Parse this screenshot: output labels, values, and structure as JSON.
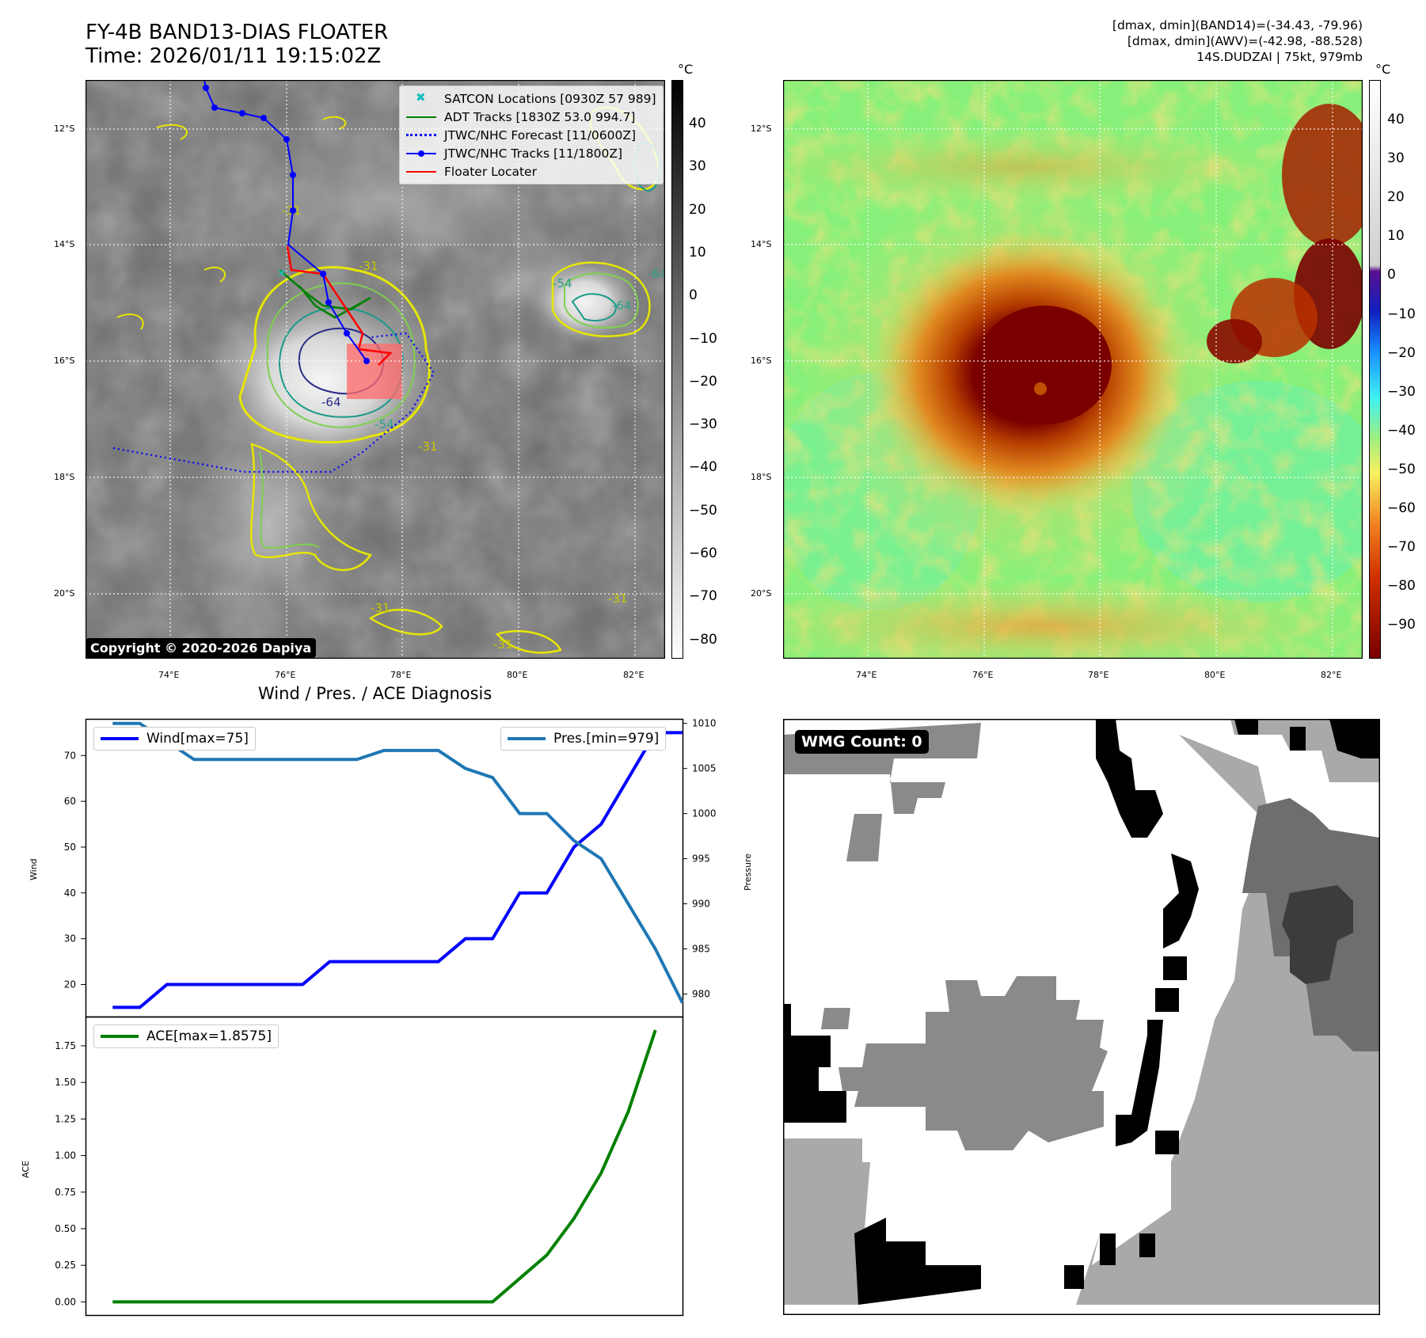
{
  "header": {
    "title_line1": "FY-4B BAND13-DIAS FLOATER",
    "title_line2": "Time: 2026/01/11 19:15:02Z",
    "info_line1": "[dmax, dmin](BAND14)=(-34.43, -79.96)",
    "info_line2": "[dmax, dmin](AWV)=(-42.98, -88.528)",
    "info_line3": "14S.DUDZAI | 75kt, 979mb"
  },
  "map": {
    "lat_labels": [
      "12°S",
      "14°S",
      "16°S",
      "18°S",
      "20°S"
    ],
    "lon_labels": [
      "74°E",
      "76°E",
      "78°E",
      "80°E",
      "82°E"
    ],
    "contour_labels": [
      "-31",
      "-31",
      "-54",
      "-64",
      "-54",
      "-64",
      "-31",
      "-31",
      "-64",
      "-31",
      "-31"
    ],
    "copyright": "Copyright © 2020-2026 Dapiya",
    "legend": [
      {
        "label": "SATCON Locations [0930Z 57 989]",
        "color": "#17bfbf",
        "style": "marker-x"
      },
      {
        "label": "ADT Tracks [1830Z 53.0 994.7]",
        "color": "#008000",
        "style": "solid"
      },
      {
        "label": "JTWC/NHC Forecast [11/0600Z]",
        "color": "#0000ff",
        "style": "dotted"
      },
      {
        "label": "JTWC/NHC Tracks [11/1800Z]",
        "color": "#0000ff",
        "style": "solid-dot"
      },
      {
        "label": "Floater Locater",
        "color": "#ff0000",
        "style": "solid"
      }
    ]
  },
  "colorbar_left": {
    "unit": "°C",
    "ticks": [
      "40",
      "30",
      "20",
      "10",
      "0",
      "−10",
      "−20",
      "−30",
      "−40",
      "−50",
      "−60",
      "−70",
      "−80"
    ]
  },
  "colorbar_right": {
    "unit": "°C",
    "ticks": [
      "40",
      "30",
      "20",
      "10",
      "0",
      "−10",
      "−20",
      "−30",
      "−40",
      "−50",
      "−60",
      "−70",
      "−80",
      "−90"
    ]
  },
  "diagnosis": {
    "title": "Wind / Pres. / ACE Diagnosis",
    "wind_ylabel": "Wind",
    "pres_ylabel": "Pressure",
    "ace_ylabel": "ACE",
    "wind_legend": "Wind[max=75]",
    "pres_legend": "Pres.[min=979]",
    "ace_legend": "ACE[max=1.8575]"
  },
  "wmg": {
    "label": "WMG Count: 0"
  },
  "colors": {
    "wind": "#0000ff",
    "pressure": "#1f77b4",
    "ace": "#008000",
    "track": "#0000ff",
    "adt": "#008000",
    "floater": "#ff0000"
  },
  "chart_data": [
    {
      "type": "line",
      "title": "Wind / Pres. / ACE Diagnosis",
      "x": [
        0,
        1,
        2,
        3,
        4,
        5,
        6,
        7,
        8,
        9,
        10,
        11,
        12,
        13,
        14,
        15,
        16,
        17,
        18,
        19,
        20,
        21
      ],
      "series": [
        {
          "name": "Wind[max=75]",
          "axis": "left",
          "values": [
            15,
            15,
            20,
            20,
            20,
            20,
            20,
            20,
            25,
            25,
            25,
            25,
            25,
            30,
            30,
            40,
            40,
            50,
            55,
            65,
            75,
            75
          ]
        },
        {
          "name": "Pres.[min=979]",
          "axis": "right",
          "values": [
            1010,
            1010,
            1008,
            1006,
            1006,
            1006,
            1006,
            1006,
            1006,
            1006,
            1007,
            1007,
            1007,
            1005,
            1004,
            1000,
            1000,
            997,
            995,
            990,
            985,
            979
          ]
        }
      ],
      "xlim": [
        -1,
        21
      ],
      "ylabel": "Wind",
      "ylim": [
        13,
        78
      ],
      "yticks": [
        20,
        30,
        40,
        50,
        60,
        70
      ],
      "y2label": "Pressure",
      "y2lim": [
        977.5,
        1010.5
      ],
      "y2ticks": [
        980,
        985,
        990,
        995,
        1000,
        1005,
        1010
      ],
      "legend": [
        "upper-left",
        "upper-right"
      ]
    },
    {
      "type": "line",
      "x": [
        0,
        1,
        2,
        3,
        4,
        5,
        6,
        7,
        8,
        9,
        10,
        11,
        12,
        13,
        14,
        15,
        16,
        17,
        18,
        19,
        20
      ],
      "series": [
        {
          "name": "ACE[max=1.8575]",
          "values": [
            0,
            0,
            0,
            0,
            0,
            0,
            0,
            0,
            0,
            0,
            0,
            0,
            0,
            0,
            0,
            0.16,
            0.32,
            0.57,
            0.88,
            1.3,
            1.8575
          ]
        }
      ],
      "xlim": [
        -1,
        21
      ],
      "ylabel": "ACE",
      "ylim": [
        -0.09,
        1.95
      ],
      "yticks": [
        0,
        0.25,
        0.5,
        0.75,
        1.0,
        1.25,
        1.5,
        1.75
      ],
      "ytick_labels": [
        "0.00",
        "0.25",
        "0.50",
        "0.75",
        "1.00",
        "1.25",
        "1.50",
        "1.75"
      ],
      "legend": "upper-left"
    }
  ]
}
